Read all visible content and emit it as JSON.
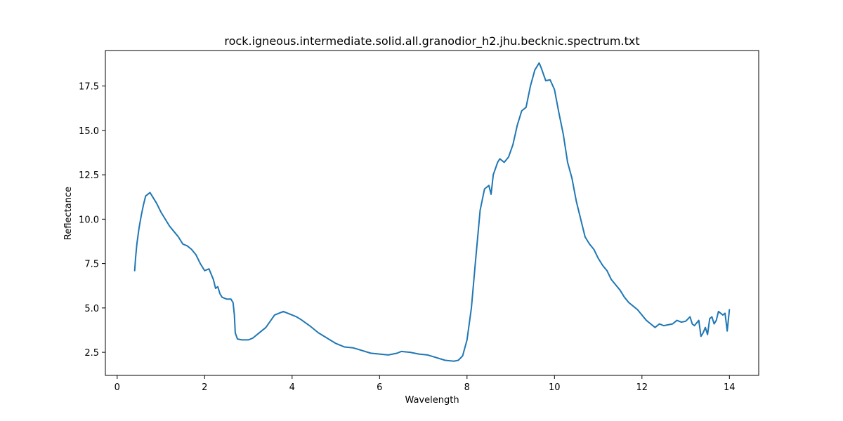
{
  "chart_data": {
    "type": "line",
    "title": "rock.igneous.intermediate.solid.all.granodior_h2.jhu.becknic.spectrum.txt",
    "xlabel": "Wavelength",
    "ylabel": "Reflectance",
    "xlim": [
      -0.27,
      14.67
    ],
    "ylim": [
      1.2,
      19.5
    ],
    "xticks": [
      0,
      2,
      4,
      6,
      8,
      10,
      12,
      14
    ],
    "xtick_labels": [
      "0",
      "2",
      "4",
      "6",
      "8",
      "10",
      "12",
      "14"
    ],
    "yticks": [
      2.5,
      5.0,
      7.5,
      10.0,
      12.5,
      15.0,
      17.5
    ],
    "ytick_labels": [
      "2.5",
      "5.0",
      "7.5",
      "10.0",
      "12.5",
      "15.0",
      "17.5"
    ],
    "grid": false,
    "series": [
      {
        "color": "#1f77b4",
        "points": [
          [
            0.4,
            7.1
          ],
          [
            0.42,
            7.8
          ],
          [
            0.45,
            8.6
          ],
          [
            0.5,
            9.5
          ],
          [
            0.55,
            10.2
          ],
          [
            0.6,
            10.8
          ],
          [
            0.65,
            11.3
          ],
          [
            0.7,
            11.4
          ],
          [
            0.75,
            11.5
          ],
          [
            0.8,
            11.3
          ],
          [
            0.9,
            10.9
          ],
          [
            1.0,
            10.4
          ],
          [
            1.1,
            10.0
          ],
          [
            1.2,
            9.6
          ],
          [
            1.3,
            9.3
          ],
          [
            1.4,
            9.0
          ],
          [
            1.5,
            8.6
          ],
          [
            1.6,
            8.5
          ],
          [
            1.7,
            8.3
          ],
          [
            1.8,
            8.0
          ],
          [
            1.9,
            7.5
          ],
          [
            2.0,
            7.1
          ],
          [
            2.1,
            7.2
          ],
          [
            2.2,
            6.6
          ],
          [
            2.25,
            6.1
          ],
          [
            2.3,
            6.2
          ],
          [
            2.35,
            5.8
          ],
          [
            2.4,
            5.6
          ],
          [
            2.5,
            5.5
          ],
          [
            2.6,
            5.5
          ],
          [
            2.65,
            5.3
          ],
          [
            2.68,
            4.6
          ],
          [
            2.7,
            3.6
          ],
          [
            2.75,
            3.25
          ],
          [
            2.85,
            3.2
          ],
          [
            3.0,
            3.2
          ],
          [
            3.1,
            3.3
          ],
          [
            3.2,
            3.5
          ],
          [
            3.4,
            3.9
          ],
          [
            3.6,
            4.6
          ],
          [
            3.8,
            4.8
          ],
          [
            3.9,
            4.7
          ],
          [
            4.0,
            4.6
          ],
          [
            4.1,
            4.5
          ],
          [
            4.2,
            4.35
          ],
          [
            4.4,
            4.0
          ],
          [
            4.6,
            3.6
          ],
          [
            4.8,
            3.3
          ],
          [
            5.0,
            3.0
          ],
          [
            5.2,
            2.8
          ],
          [
            5.4,
            2.75
          ],
          [
            5.6,
            2.6
          ],
          [
            5.8,
            2.45
          ],
          [
            6.0,
            2.4
          ],
          [
            6.2,
            2.35
          ],
          [
            6.4,
            2.45
          ],
          [
            6.5,
            2.55
          ],
          [
            6.7,
            2.5
          ],
          [
            6.9,
            2.4
          ],
          [
            7.1,
            2.35
          ],
          [
            7.3,
            2.2
          ],
          [
            7.5,
            2.05
          ],
          [
            7.7,
            2.0
          ],
          [
            7.8,
            2.05
          ],
          [
            7.9,
            2.3
          ],
          [
            8.0,
            3.2
          ],
          [
            8.1,
            5.0
          ],
          [
            8.2,
            7.8
          ],
          [
            8.3,
            10.5
          ],
          [
            8.4,
            11.7
          ],
          [
            8.5,
            11.9
          ],
          [
            8.55,
            11.4
          ],
          [
            8.6,
            12.5
          ],
          [
            8.7,
            13.2
          ],
          [
            8.75,
            13.4
          ],
          [
            8.85,
            13.2
          ],
          [
            8.95,
            13.5
          ],
          [
            9.05,
            14.2
          ],
          [
            9.15,
            15.3
          ],
          [
            9.25,
            16.1
          ],
          [
            9.35,
            16.3
          ],
          [
            9.45,
            17.5
          ],
          [
            9.55,
            18.4
          ],
          [
            9.65,
            18.8
          ],
          [
            9.7,
            18.5
          ],
          [
            9.8,
            17.8
          ],
          [
            9.9,
            17.85
          ],
          [
            10.0,
            17.3
          ],
          [
            10.1,
            16.0
          ],
          [
            10.2,
            14.8
          ],
          [
            10.3,
            13.2
          ],
          [
            10.4,
            12.3
          ],
          [
            10.5,
            11.0
          ],
          [
            10.6,
            10.0
          ],
          [
            10.7,
            9.0
          ],
          [
            10.8,
            8.6
          ],
          [
            10.9,
            8.3
          ],
          [
            11.0,
            7.8
          ],
          [
            11.1,
            7.4
          ],
          [
            11.2,
            7.1
          ],
          [
            11.3,
            6.6
          ],
          [
            11.4,
            6.3
          ],
          [
            11.5,
            6.0
          ],
          [
            11.6,
            5.6
          ],
          [
            11.7,
            5.3
          ],
          [
            11.8,
            5.1
          ],
          [
            11.9,
            4.9
          ],
          [
            12.0,
            4.6
          ],
          [
            12.1,
            4.3
          ],
          [
            12.2,
            4.1
          ],
          [
            12.3,
            3.9
          ],
          [
            12.4,
            4.1
          ],
          [
            12.5,
            4.0
          ],
          [
            12.6,
            4.05
          ],
          [
            12.7,
            4.1
          ],
          [
            12.8,
            4.3
          ],
          [
            12.9,
            4.2
          ],
          [
            13.0,
            4.25
          ],
          [
            13.1,
            4.5
          ],
          [
            13.15,
            4.1
          ],
          [
            13.2,
            4.0
          ],
          [
            13.3,
            4.3
          ],
          [
            13.35,
            3.4
          ],
          [
            13.4,
            3.6
          ],
          [
            13.45,
            3.9
          ],
          [
            13.5,
            3.5
          ],
          [
            13.55,
            4.4
          ],
          [
            13.6,
            4.5
          ],
          [
            13.65,
            4.1
          ],
          [
            13.7,
            4.3
          ],
          [
            13.75,
            4.8
          ],
          [
            13.8,
            4.7
          ],
          [
            13.85,
            4.6
          ],
          [
            13.9,
            4.7
          ],
          [
            13.95,
            3.7
          ],
          [
            14.0,
            4.9
          ]
        ]
      }
    ]
  }
}
